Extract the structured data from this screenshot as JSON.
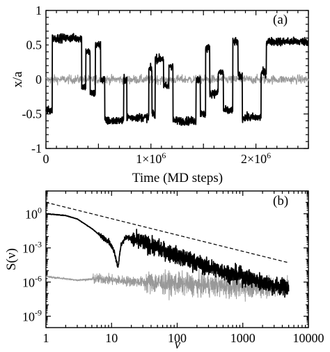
{
  "chart_data": [
    {
      "type": "line",
      "panel_label": "(a)",
      "xlabel": "Time (MD steps)",
      "ylabel": "x/a",
      "xlim": [
        0,
        2500000
      ],
      "ylim": [
        -1,
        1
      ],
      "xtick_labels": [
        {
          "value": 0,
          "mantissa": "0",
          "exp": ""
        },
        {
          "value": 1000000,
          "mantissa": "1×10",
          "exp": "6"
        },
        {
          "value": 2000000,
          "mantissa": "2×10",
          "exp": "6"
        }
      ],
      "ytick_labels": [
        "1",
        "0.5",
        "0",
        "-0.5",
        "-1"
      ],
      "yticks": [
        1,
        0.5,
        0,
        -0.5,
        -1
      ],
      "series": [
        {
          "color": "#000000",
          "style": "noisy telegraph signal",
          "segments": [
            [
              0,
              60000,
              -0.45
            ],
            [
              60000,
              340000,
              0.6
            ],
            [
              340000,
              380000,
              -0.1
            ],
            [
              380000,
              420000,
              0.4
            ],
            [
              420000,
              470000,
              -0.2
            ],
            [
              470000,
              520000,
              0.5
            ],
            [
              520000,
              560000,
              0.0
            ],
            [
              560000,
              740000,
              -0.6
            ],
            [
              740000,
              770000,
              0.0
            ],
            [
              770000,
              980000,
              -0.55
            ],
            [
              980000,
              1010000,
              0.15
            ],
            [
              1010000,
              1040000,
              -0.5
            ],
            [
              1040000,
              1120000,
              0.3
            ],
            [
              1120000,
              1170000,
              -0.1
            ],
            [
              1170000,
              1210000,
              0.2
            ],
            [
              1210000,
              1430000,
              -0.6
            ],
            [
              1430000,
              1470000,
              0.0
            ],
            [
              1470000,
              1520000,
              -0.5
            ],
            [
              1520000,
              1560000,
              0.45
            ],
            [
              1560000,
              1640000,
              -0.2
            ],
            [
              1640000,
              1690000,
              0.1
            ],
            [
              1690000,
              1780000,
              -0.45
            ],
            [
              1780000,
              1830000,
              0.55
            ],
            [
              1830000,
              1870000,
              0.05
            ],
            [
              1870000,
              2050000,
              -0.55
            ],
            [
              2050000,
              2100000,
              0.1
            ],
            [
              2100000,
              2500000,
              0.55
            ]
          ]
        },
        {
          "color": "#999999",
          "style": "small fluctuations around zero",
          "mean": 0.0,
          "amplitude": 0.08
        }
      ]
    },
    {
      "type": "line",
      "panel_label": "(b)",
      "xlabel": "ν",
      "ylabel": "S(ν)",
      "xscale": "log",
      "yscale": "log",
      "xlim": [
        1,
        10000
      ],
      "ylim": [
        1e-10,
        100.0
      ],
      "xtick_labels": [
        "1",
        "10",
        "100",
        "1000",
        "10000"
      ],
      "xticks": [
        1,
        10,
        100,
        1000,
        10000
      ],
      "ytick_labels": [
        {
          "value": 1,
          "exp": "0"
        },
        {
          "value": 0.001,
          "exp": "-3"
        },
        {
          "value": 1e-06,
          "exp": "-6"
        },
        {
          "value": 1e-09,
          "exp": "-9"
        }
      ],
      "series": [
        {
          "color": "#000000",
          "style": "dashed",
          "points": [
            [
              1,
              10
            ],
            [
              5000,
              5e-05
            ]
          ]
        },
        {
          "color": "#000000",
          "style": "thick noisy spectrum",
          "points": [
            [
              1,
              1.0
            ],
            [
              2,
              0.7
            ],
            [
              3,
              0.35
            ],
            [
              5,
              0.05
            ],
            [
              7,
              0.01
            ],
            [
              9,
              0.004
            ],
            [
              11,
              0.0005
            ],
            [
              12.5,
              2e-05
            ],
            [
              14,
              0.002
            ],
            [
              17,
              0.01
            ],
            [
              20,
              0.006
            ],
            [
              30,
              0.003
            ],
            [
              50,
              0.001
            ],
            [
              100,
              0.0002
            ],
            [
              300,
              2e-05
            ],
            [
              1000,
              3e-06
            ],
            [
              3000,
              5e-07
            ],
            [
              5000,
              3e-07
            ]
          ]
        },
        {
          "color": "#999999",
          "style": "thin noisy spectrum",
          "points": [
            [
              1,
              3e-06
            ],
            [
              3,
              1.5e-06
            ],
            [
              7,
              2e-06
            ],
            [
              10,
              1.5e-06
            ],
            [
              30,
              1e-06
            ],
            [
              100,
              7e-07
            ],
            [
              300,
              5e-07
            ],
            [
              1000,
              4e-07
            ],
            [
              3000,
              3e-07
            ],
            [
              5000,
              5e-07
            ]
          ]
        }
      ]
    }
  ]
}
